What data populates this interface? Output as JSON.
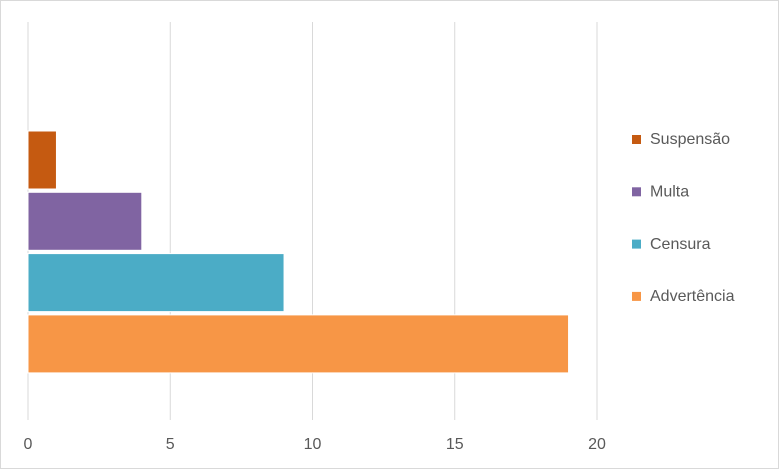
{
  "chart_data": {
    "type": "hbar",
    "series": [
      {
        "name": "Suspensão",
        "color": "#c55a11",
        "values": [
          1
        ]
      },
      {
        "name": "Multa",
        "color": "#8064a2",
        "values": [
          4
        ]
      },
      {
        "name": "Censura",
        "color": "#4bacc6",
        "values": [
          9
        ]
      },
      {
        "name": "Advertência",
        "color": "#f79646",
        "values": [
          19
        ]
      }
    ],
    "xlim": [
      0,
      20
    ],
    "xticks": [
      0,
      5,
      10,
      15,
      20
    ],
    "grid": true,
    "legend": "right"
  }
}
